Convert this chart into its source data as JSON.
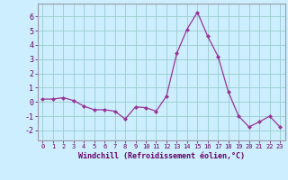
{
  "x": [
    0,
    1,
    2,
    3,
    4,
    5,
    6,
    7,
    8,
    9,
    10,
    11,
    12,
    13,
    14,
    15,
    16,
    17,
    18,
    19,
    20,
    21,
    22,
    23
  ],
  "y": [
    0.2,
    0.2,
    0.3,
    0.1,
    -0.3,
    -0.55,
    -0.55,
    -0.65,
    -1.2,
    -0.35,
    -0.4,
    -0.65,
    0.4,
    3.4,
    5.1,
    6.3,
    4.6,
    3.2,
    0.7,
    -1.0,
    -1.75,
    -1.4,
    -1.0,
    -1.75
  ],
  "line_color": "#993399",
  "marker": "D",
  "marker_size": 2.0,
  "xlabel": "Windchill (Refroidissement éolien,°C)",
  "xlim": [
    -0.5,
    23.5
  ],
  "ylim": [
    -2.7,
    6.9
  ],
  "yticks": [
    -2,
    -1,
    0,
    1,
    2,
    3,
    4,
    5,
    6
  ],
  "xticks": [
    0,
    1,
    2,
    3,
    4,
    5,
    6,
    7,
    8,
    9,
    10,
    11,
    12,
    13,
    14,
    15,
    16,
    17,
    18,
    19,
    20,
    21,
    22,
    23
  ],
  "bg_color": "#cceeff",
  "grid_color": "#99cccc",
  "spine_color": "#9999aa"
}
